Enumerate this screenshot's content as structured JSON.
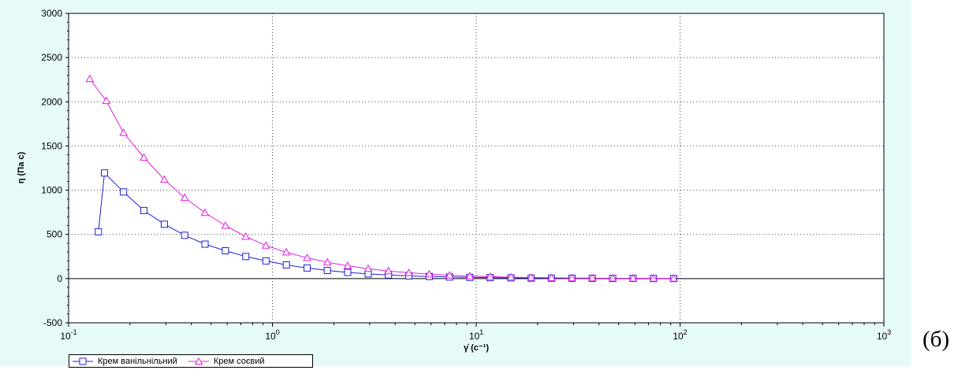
{
  "panel_label": "(б)",
  "chart_data": {
    "type": "line",
    "title": "",
    "xlabel": "γ̇ (c⁻¹)",
    "ylabel": "η (Па с)",
    "xscale": "log",
    "xlim": [
      0.1,
      1000
    ],
    "ylim": [
      -500,
      3000
    ],
    "yticks": [
      -500,
      0,
      500,
      1000,
      1500,
      2000,
      2500,
      3000
    ],
    "xticks": [
      {
        "value": 0.1,
        "base": "10",
        "exp": "-1"
      },
      {
        "value": 1,
        "base": "10",
        "exp": "0"
      },
      {
        "value": 10,
        "base": "10",
        "exp": "1"
      },
      {
        "value": 100,
        "base": "10",
        "exp": "2"
      },
      {
        "value": 1000,
        "base": "10",
        "exp": "3"
      }
    ],
    "grid": true,
    "zero_line": true,
    "legend_position": "bottom",
    "series": [
      {
        "name": "Крем ванільнільний",
        "color": "#1f1fd2",
        "marker": "square",
        "x": [
          0.14,
          0.15,
          0.186,
          0.234,
          0.295,
          0.371,
          0.467,
          0.588,
          0.74,
          0.93,
          1.17,
          1.48,
          1.86,
          2.34,
          2.95,
          3.71,
          4.67,
          5.88,
          7.4,
          9.3,
          11.7,
          14.8,
          18.6,
          23.4,
          29.5,
          37.1,
          46.7,
          58.8,
          74,
          93
        ],
        "y": [
          530,
          1195,
          980,
          770,
          615,
          490,
          390,
          315,
          250,
          200,
          155,
          120,
          92,
          70,
          53,
          41,
          31,
          24,
          18,
          14,
          11,
          8,
          6,
          5,
          4,
          3,
          2,
          2,
          1,
          1
        ]
      },
      {
        "name": "Крем соєвий",
        "color": "#e020e0",
        "marker": "triangle",
        "x": [
          0.127,
          0.153,
          0.186,
          0.234,
          0.295,
          0.371,
          0.467,
          0.588,
          0.74,
          0.93,
          1.17,
          1.48,
          1.86,
          2.34,
          2.95,
          3.71,
          4.67,
          5.88,
          7.4,
          9.3,
          11.7,
          14.8,
          18.6,
          23.4,
          29.5,
          37.1,
          46.7,
          58.8,
          74,
          93
        ],
        "y": [
          2260,
          2010,
          1650,
          1370,
          1120,
          915,
          745,
          600,
          475,
          375,
          298,
          235,
          185,
          145,
          112,
          86,
          66,
          50,
          38,
          29,
          22,
          16,
          12,
          9,
          7,
          5,
          4,
          3,
          2,
          2
        ]
      }
    ]
  }
}
